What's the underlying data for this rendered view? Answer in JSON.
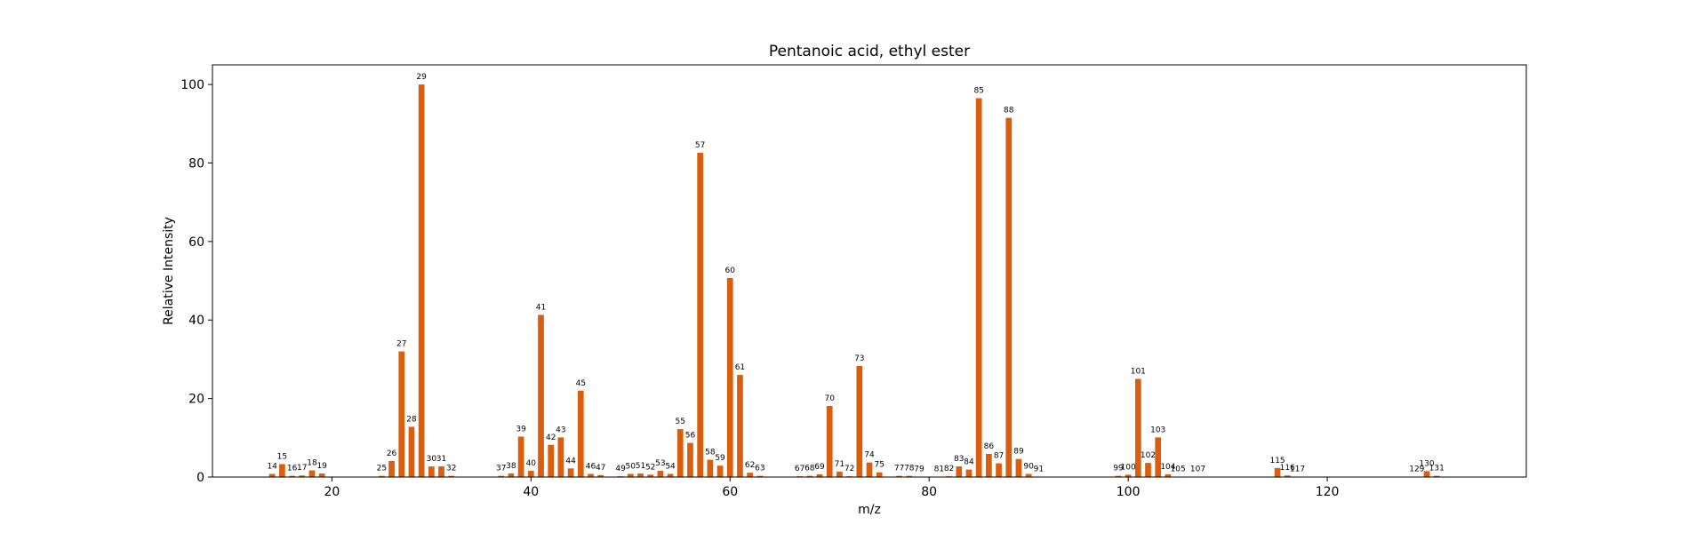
{
  "chart_data": {
    "type": "bar",
    "title": "Pentanoic acid, ethyl ester",
    "xlabel": "m/z",
    "ylabel": "Relative Intensity",
    "xlim": [
      8,
      140
    ],
    "ylim": [
      0,
      105
    ],
    "xticks": [
      20,
      40,
      60,
      80,
      100,
      120
    ],
    "yticks": [
      0,
      20,
      40,
      60,
      80,
      100
    ],
    "grid": false,
    "bar_color": "#d95f0e",
    "x": [
      14,
      15,
      16,
      17,
      18,
      19,
      25,
      26,
      27,
      28,
      29,
      30,
      31,
      32,
      37,
      38,
      39,
      40,
      41,
      42,
      43,
      44,
      45,
      46,
      47,
      49,
      50,
      51,
      52,
      53,
      54,
      55,
      56,
      57,
      58,
      59,
      60,
      61,
      62,
      63,
      67,
      68,
      69,
      70,
      71,
      72,
      73,
      74,
      75,
      77,
      78,
      79,
      81,
      82,
      83,
      84,
      85,
      86,
      87,
      88,
      89,
      90,
      91,
      99,
      100,
      101,
      102,
      103,
      104,
      105,
      107,
      115,
      116,
      117,
      129,
      130,
      131
    ],
    "values": [
      0.8,
      3.3,
      0.3,
      0.4,
      1.7,
      0.9,
      0.3,
      4.1,
      32,
      12.8,
      100,
      2.7,
      2.7,
      0.3,
      0.3,
      0.9,
      10.3,
      1.6,
      41.3,
      8.2,
      10.1,
      2.2,
      22,
      0.8,
      0.5,
      0.2,
      0.8,
      0.9,
      0.6,
      1.6,
      0.8,
      12.2,
      8.7,
      82.6,
      4.4,
      2.9,
      50.7,
      26,
      1.1,
      0.3,
      0.2,
      0.3,
      0.7,
      18.1,
      1.4,
      0.2,
      28.3,
      3.7,
      1.2,
      0.3,
      0.3,
      0.1,
      0.1,
      0.2,
      2.7,
      1.9,
      96.5,
      5.9,
      3.5,
      91.5,
      4.6,
      0.8,
      0.1,
      0.3,
      0.6,
      25,
      3.6,
      10.1,
      0.7,
      0.1,
      0.1,
      2.3,
      0.4,
      0.1,
      0.1,
      1.5,
      0.3
    ]
  }
}
